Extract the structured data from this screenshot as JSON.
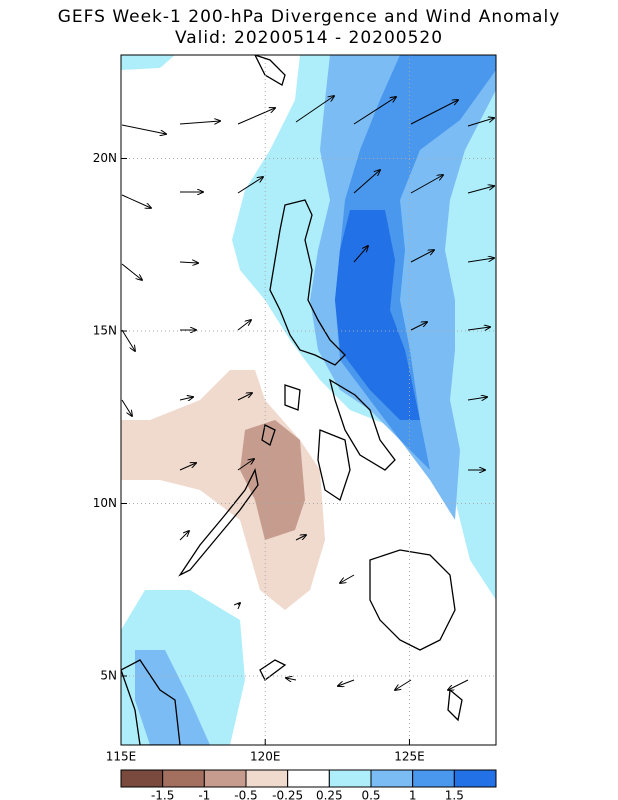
{
  "title": "GEFS Week-1 200-hPa Divergence and Wind Anomaly",
  "subtitle": "Valid: 20200514 - 20200520",
  "map": {
    "xlim": [
      115,
      128
    ],
    "ylim": [
      3,
      23
    ],
    "xticks": [
      {
        "value": 115,
        "label": "115E"
      },
      {
        "value": 120,
        "label": "120E"
      },
      {
        "value": 125,
        "label": "125E"
      }
    ],
    "yticks": [
      {
        "value": 5,
        "label": "5N"
      },
      {
        "value": 10,
        "label": "10N"
      },
      {
        "value": 15,
        "label": "15N"
      },
      {
        "value": 20,
        "label": "20N"
      }
    ]
  },
  "colorbar": {
    "levels": [
      -1.5,
      -1,
      -0.5,
      -0.25,
      0.25,
      0.5,
      1,
      1.5
    ],
    "colors": [
      "#7a4a3e",
      "#a3705f",
      "#c69c8f",
      "#f0d9cd",
      "#ffffff",
      "#aeeefa",
      "#7cbcf4",
      "#4a97ee",
      "#2271e6"
    ]
  }
}
